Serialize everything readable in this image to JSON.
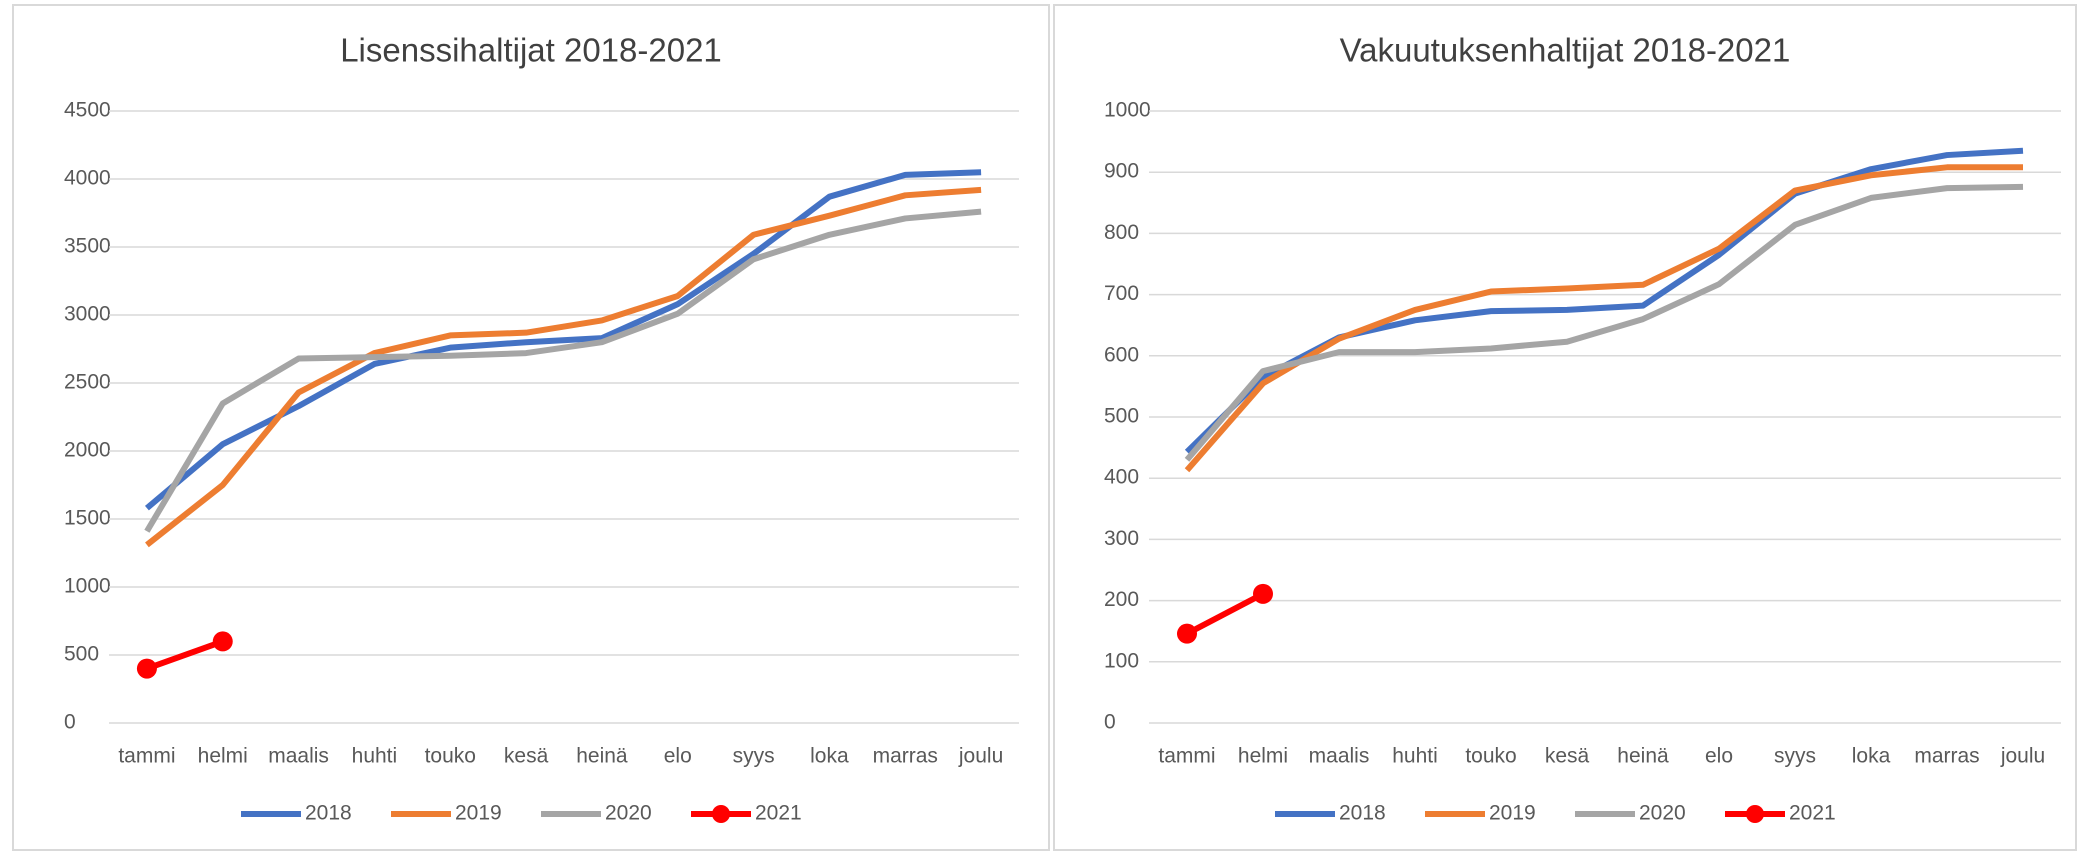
{
  "chart_data": [
    {
      "type": "line",
      "title": "Lisenssihaltijat 2018-2021",
      "categories": [
        "tammi",
        "helmi",
        "maalis",
        "huhti",
        "touko",
        "kesä",
        "heinä",
        "elo",
        "syys",
        "loka",
        "marras",
        "joulu"
      ],
      "series": [
        {
          "name": "2018",
          "color": "#4472c4",
          "values": [
            1580,
            2050,
            2330,
            2640,
            2760,
            2800,
            2830,
            3080,
            3450,
            3870,
            4030,
            4050
          ]
        },
        {
          "name": "2019",
          "color": "#ed7d31",
          "values": [
            1310,
            1750,
            2430,
            2720,
            2850,
            2870,
            2960,
            3140,
            3590,
            3730,
            3880,
            3920
          ]
        },
        {
          "name": "2020",
          "color": "#a5a5a5",
          "values": [
            1410,
            2350,
            2680,
            2690,
            2700,
            2720,
            2800,
            3010,
            3410,
            3590,
            3710,
            3760
          ]
        },
        {
          "name": "2021",
          "color": "#ff0000",
          "marker": true,
          "values": [
            400,
            600,
            null,
            null,
            null,
            null,
            null,
            null,
            null,
            null,
            null,
            null
          ]
        }
      ],
      "ylim": [
        0,
        4500
      ],
      "yticks": [
        0,
        500,
        1000,
        1500,
        2000,
        2500,
        3000,
        3500,
        4000,
        4500
      ],
      "grid": true,
      "legend": "bottom"
    },
    {
      "type": "line",
      "title": "Vakuutuksenhaltijat 2018-2021",
      "categories": [
        "tammi",
        "helmi",
        "maalis",
        "huhti",
        "touko",
        "kesä",
        "heinä",
        "elo",
        "syys",
        "loka",
        "marras",
        "joulu"
      ],
      "series": [
        {
          "name": "2018",
          "color": "#4472c4",
          "values": [
            443,
            565,
            630,
            658,
            673,
            675,
            682,
            765,
            865,
            905,
            928,
            935
          ]
        },
        {
          "name": "2019",
          "color": "#ed7d31",
          "values": [
            413,
            555,
            628,
            675,
            705,
            710,
            716,
            775,
            870,
            895,
            908,
            908
          ]
        },
        {
          "name": "2020",
          "color": "#a5a5a5",
          "values": [
            430,
            575,
            606,
            606,
            612,
            623,
            660,
            717,
            814,
            858,
            874,
            876
          ]
        },
        {
          "name": "2021",
          "color": "#ff0000",
          "marker": true,
          "values": [
            146,
            211,
            null,
            null,
            null,
            null,
            null,
            null,
            null,
            null,
            null,
            null
          ]
        }
      ],
      "ylim": [
        0,
        1000
      ],
      "yticks": [
        0,
        100,
        200,
        300,
        400,
        500,
        600,
        700,
        800,
        900,
        1000
      ],
      "grid": true,
      "legend": "bottom"
    }
  ]
}
